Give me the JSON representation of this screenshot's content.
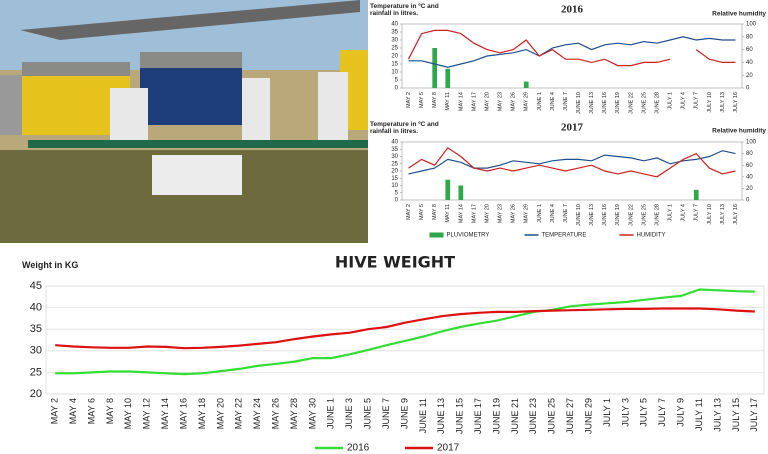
{
  "chart_data": [
    {
      "type": "line",
      "title": "2016",
      "ylabel": "Temperature in ºC and rainfall in litres.",
      "y2label": "Relative humidity",
      "categories": [
        "MAY 2",
        "MAY 5",
        "MAY 8",
        "MAY 11",
        "MAY 14",
        "MAY 17",
        "MAY 20",
        "MAY 23",
        "MAY 26",
        "MAY 29",
        "JUNE 1",
        "JUNE 4",
        "JUNE 7",
        "JUNE 10",
        "JUNE 13",
        "JUNE 16",
        "JUNE 19",
        "JUNE 22",
        "JUNE 25",
        "JUNE 28",
        "JULY 1",
        "JULY 4",
        "JULY 7",
        "JULY 10",
        "JULY 13",
        "JULY 16"
      ],
      "series": [
        {
          "type": "bar",
          "color": "#2ea84a",
          "values": [
            0,
            0,
            25,
            12,
            0,
            0,
            0,
            0,
            0,
            4,
            0,
            0,
            0,
            0,
            0,
            0,
            0,
            0,
            0,
            0,
            0,
            0,
            0,
            0,
            0,
            0
          ]
        },
        {
          "type": "line",
          "color": "#1f4e8c",
          "values": [
            17,
            17,
            15,
            13,
            15,
            17,
            20,
            21,
            22,
            24,
            20,
            25,
            27,
            28,
            24,
            27,
            28,
            27,
            29,
            28,
            30,
            32,
            30,
            31,
            30,
            30
          ]
        },
        {
          "type": "line",
          "color": "#cc1f1f",
          "axis": "y2",
          "values": [
            45,
            85,
            90,
            90,
            85,
            70,
            60,
            55,
            60,
            75,
            50,
            60,
            45,
            45,
            40,
            45,
            35,
            35,
            40,
            40,
            45,
            null,
            60,
            45,
            40,
            40
          ]
        }
      ],
      "ylim": [
        0,
        40
      ],
      "yticks": [
        0,
        5,
        10,
        15,
        20,
        25,
        30,
        35,
        40
      ],
      "y2lim": [
        0,
        100
      ],
      "y2ticks": [
        0,
        20,
        40,
        60,
        80,
        100
      ]
    },
    {
      "type": "line",
      "title": "2017",
      "ylabel": "Temperature in ºC and rainfall in litres.",
      "y2label": "Relative humidity",
      "categories": [
        "MAY 2",
        "MAY 5",
        "MAY 8",
        "MAY 11",
        "MAY 14",
        "MAY 17",
        "MAY 20",
        "MAY 23",
        "MAY 26",
        "MAY 29",
        "JUNE 1",
        "JUNE 4",
        "JUNE 7",
        "JUNE 10",
        "JUNE 13",
        "JUNE 16",
        "JUNE 19",
        "JUNE 22",
        "JUNE 25",
        "JUNE 28",
        "JULY 1",
        "JULY 4",
        "JULY 7",
        "JULY 10",
        "JULY 13",
        "JULY 16"
      ],
      "series": [
        {
          "name": "PLUVIOMETRY",
          "type": "bar",
          "color": "#2ea84a",
          "values": [
            0,
            0,
            0,
            14,
            10,
            0,
            0,
            0,
            0,
            0,
            0,
            0,
            0,
            0,
            0,
            0,
            0,
            0,
            0,
            0,
            0,
            0,
            7,
            0,
            0,
            0
          ]
        },
        {
          "name": "TEMPERATURE",
          "type": "line",
          "color": "#1f4e8c",
          "values": [
            18,
            20,
            22,
            28,
            26,
            22,
            22,
            24,
            27,
            26,
            25,
            27,
            28,
            28,
            27,
            31,
            30,
            29,
            27,
            29,
            25,
            27,
            28,
            30,
            34,
            32
          ]
        },
        {
          "name": "HUMIDITY",
          "type": "line",
          "color": "#cc1f1f",
          "axis": "y2",
          "values": [
            55,
            70,
            60,
            90,
            75,
            55,
            50,
            55,
            50,
            55,
            60,
            55,
            50,
            55,
            60,
            50,
            45,
            50,
            45,
            40,
            55,
            70,
            80,
            55,
            45,
            50
          ]
        }
      ],
      "ylim": [
        0,
        40
      ],
      "yticks": [
        0,
        5,
        10,
        15,
        20,
        25,
        30,
        35,
        40
      ],
      "y2lim": [
        0,
        100
      ],
      "y2ticks": [
        0,
        20,
        40,
        60,
        80,
        100
      ]
    },
    {
      "type": "line",
      "title": "HIVE WEIGHT",
      "ylabel": "Weight in KG",
      "grid": true,
      "categories": [
        "MAY 2",
        "MAY 4",
        "MAY 6",
        "MAY 8",
        "MAY 10",
        "MAY 12",
        "MAY 14",
        "MAY 16",
        "MAY 18",
        "MAY 20",
        "MAY 22",
        "MAY 24",
        "MAY 26",
        "MAY 28",
        "MAY 30",
        "JUNE 1",
        "JUNE 3",
        "JUNE 5",
        "JUNE 7",
        "JUNE 9",
        "JUNE 11",
        "JUNE 13",
        "JUNE 15",
        "JUNE 17",
        "JUNE 19",
        "JUNE 21",
        "JUNE 23",
        "JUNE 25",
        "JUNE 27",
        "JUNE 29",
        "JULY 1",
        "JULY 3",
        "JULY 5",
        "JULY 7",
        "JULY 9",
        "JULY 11",
        "JULY 13",
        "JULY 15",
        "JULY 17"
      ],
      "series": [
        {
          "name": "2016",
          "type": "line",
          "color": "#33dd33",
          "values": [
            24.8,
            24.8,
            25,
            25.2,
            25.2,
            25,
            24.8,
            24.6,
            24.8,
            25.3,
            25.8,
            26.5,
            27,
            27.5,
            28.3,
            28.3,
            29.2,
            30.2,
            31.3,
            32.3,
            33.3,
            34.5,
            35.5,
            36.3,
            37,
            38,
            39,
            39.5,
            40.3,
            40.7,
            41,
            41.3,
            41.8,
            42.3,
            42.7,
            44.2,
            44,
            43.8,
            43.7
          ]
        },
        {
          "name": "2017",
          "type": "line",
          "color": "#dd1111",
          "values": [
            31.3,
            31,
            30.8,
            30.7,
            30.7,
            31,
            30.9,
            30.6,
            30.7,
            30.9,
            31.2,
            31.6,
            32,
            32.7,
            33.3,
            33.8,
            34.2,
            35,
            35.5,
            36.5,
            37.3,
            38,
            38.5,
            38.8,
            39,
            39,
            39.2,
            39.3,
            39.4,
            39.5,
            39.6,
            39.7,
            39.7,
            39.8,
            39.8,
            39.8,
            39.6,
            39.3,
            39.1
          ]
        }
      ],
      "ylim": [
        20,
        45
      ],
      "yticks": [
        20,
        25,
        30,
        35,
        40,
        45
      ]
    }
  ]
}
